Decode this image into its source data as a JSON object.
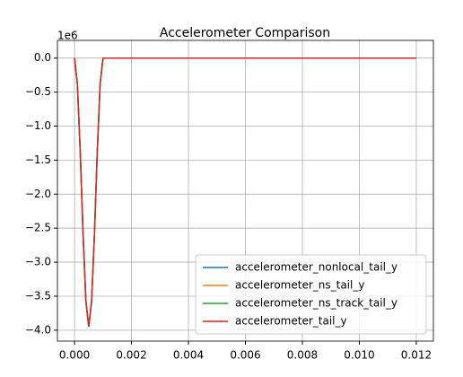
{
  "chart_data": {
    "type": "line",
    "title": "Accelerometer Comparison",
    "y_offset_text": "1e6",
    "x": [
      0,
      0.0001,
      0.0002,
      0.0003,
      0.0004,
      0.0005,
      0.0006,
      0.0007,
      0.0008,
      0.0009,
      0.001,
      0.012
    ],
    "series": [
      {
        "name": "accelerometer_nonlocal_tail_y",
        "color": "#1f77b4",
        "values": [
          0,
          -0.377,
          -1.364,
          -2.586,
          -3.574,
          -3.95,
          -3.574,
          -2.586,
          -1.364,
          -0.377,
          0,
          0
        ]
      },
      {
        "name": "accelerometer_ns_tail_y",
        "color": "#ff7f0e",
        "values": [
          0,
          -0.377,
          -1.364,
          -2.586,
          -3.574,
          -3.95,
          -3.574,
          -2.586,
          -1.364,
          -0.377,
          0,
          0
        ]
      },
      {
        "name": "accelerometer_ns_track_tail_y",
        "color": "#2ca02c",
        "values": [
          0,
          -0.377,
          -1.364,
          -2.586,
          -3.574,
          -3.95,
          -3.574,
          -2.586,
          -1.364,
          -0.377,
          0,
          0
        ]
      },
      {
        "name": "accelerometer_tail_y",
        "color": "#d62728",
        "values": [
          0,
          -0.377,
          -1.364,
          -2.586,
          -3.574,
          -3.95,
          -3.574,
          -2.586,
          -1.364,
          -0.377,
          0,
          0
        ]
      }
    ],
    "xlim": [
      -0.0006,
      0.0126
    ],
    "xticks": [
      {
        "value": 0,
        "label": "0.000"
      },
      {
        "value": 0.002,
        "label": "0.002"
      },
      {
        "value": 0.004,
        "label": "0.004"
      },
      {
        "value": 0.006,
        "label": "0.006"
      },
      {
        "value": 0.008,
        "label": "0.008"
      },
      {
        "value": 0.01,
        "label": "0.010"
      },
      {
        "value": 0.012,
        "label": "0.012"
      }
    ],
    "ylim": [
      -4.16,
      0.26
    ],
    "yticks": [
      {
        "value": 0,
        "label": "0.0"
      },
      {
        "value": -0.5,
        "label": "−0.5"
      },
      {
        "value": -1,
        "label": "−1.0"
      },
      {
        "value": -1.5,
        "label": "−1.5"
      },
      {
        "value": -2,
        "label": "−2.0"
      },
      {
        "value": -2.5,
        "label": "−2.5"
      },
      {
        "value": -3,
        "label": "−3.0"
      },
      {
        "value": -3.5,
        "label": "−3.5"
      },
      {
        "value": -4,
        "label": "−4.0"
      }
    ],
    "grid": true,
    "legend": "lower right"
  }
}
